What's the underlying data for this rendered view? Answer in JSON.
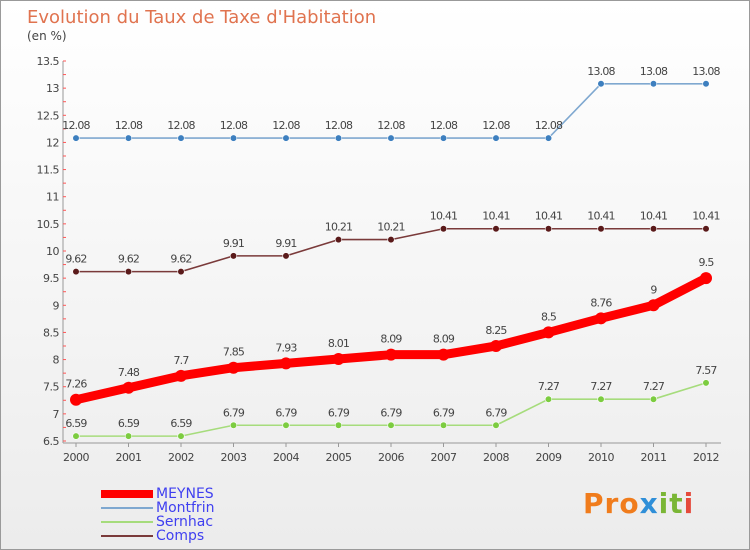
{
  "chart_data": {
    "type": "line",
    "title": "Evolution du Taux de Taxe d'Habitation",
    "subtitle": "(en %)",
    "x": [
      "2000",
      "2001",
      "2002",
      "2003",
      "2004",
      "2005",
      "2006",
      "2007",
      "2008",
      "2009",
      "2010",
      "2011",
      "2012"
    ],
    "ylim": [
      6.5,
      13.5
    ],
    "yticks": [
      6.5,
      7,
      7.5,
      8,
      8.5,
      9,
      9.5,
      10,
      10.5,
      11,
      11.5,
      12,
      12.5,
      13,
      13.5
    ],
    "grid": false,
    "legend_position": "bottom-left",
    "series": [
      {
        "name": "MEYNES",
        "color": "#ff0000",
        "point_color": "#ff0000",
        "values": [
          7.26,
          7.48,
          7.7,
          7.85,
          7.93,
          8.01,
          8.09,
          8.09,
          8.25,
          8.5,
          8.76,
          9,
          9.5
        ],
        "labels": [
          "7.26",
          "7.48",
          "7.7",
          "7.85",
          "7.93",
          "8.01",
          "8.09",
          "8.09",
          "8.25",
          "8.5",
          "8.76",
          "9",
          "9.5"
        ]
      },
      {
        "name": "Montfrin",
        "color": "#7fa8d0",
        "point_color": "#3d7fbf",
        "values": [
          12.08,
          12.08,
          12.08,
          12.08,
          12.08,
          12.08,
          12.08,
          12.08,
          12.08,
          12.08,
          13.08,
          13.08,
          13.08
        ],
        "labels": [
          "12.08",
          "12.08",
          "12.08",
          "12.08",
          "12.08",
          "12.08",
          "12.08",
          "12.08",
          "12.08",
          "12.08",
          "13.08",
          "13.08",
          "13.08"
        ]
      },
      {
        "name": "Sernhac",
        "color": "#a6dc7c",
        "point_color": "#7ccc40",
        "values": [
          6.59,
          6.59,
          6.59,
          6.79,
          6.79,
          6.79,
          6.79,
          6.79,
          6.79,
          7.27,
          7.27,
          7.27,
          7.57
        ],
        "labels": [
          "6.59",
          "6.59",
          "6.59",
          "6.79",
          "6.79",
          "6.79",
          "6.79",
          "6.79",
          "6.79",
          "7.27",
          "7.27",
          "7.27",
          "7.57"
        ]
      },
      {
        "name": "Comps",
        "color": "#7a3a3a",
        "point_color": "#5a1a1a",
        "values": [
          9.62,
          9.62,
          9.62,
          9.91,
          9.91,
          10.21,
          10.21,
          10.41,
          10.41,
          10.41,
          10.41,
          10.41,
          10.41
        ],
        "labels": [
          "9.62",
          "9.62",
          "9.62",
          "9.91",
          "9.91",
          "10.21",
          "10.21",
          "10.41",
          "10.41",
          "10.41",
          "10.41",
          "10.41",
          "10.41"
        ]
      }
    ]
  },
  "legend": {
    "items": [
      {
        "label": "MEYNES",
        "color": "#ff0000"
      },
      {
        "label": "Montfrin",
        "color": "#7fa8d0"
      },
      {
        "label": "Sernhac",
        "color": "#a6dc7c"
      },
      {
        "label": "Comps",
        "color": "#7a3a3a"
      }
    ]
  },
  "logo": {
    "p1": "Pro",
    "p2": "x",
    "p3": "it",
    "p4": "i"
  }
}
